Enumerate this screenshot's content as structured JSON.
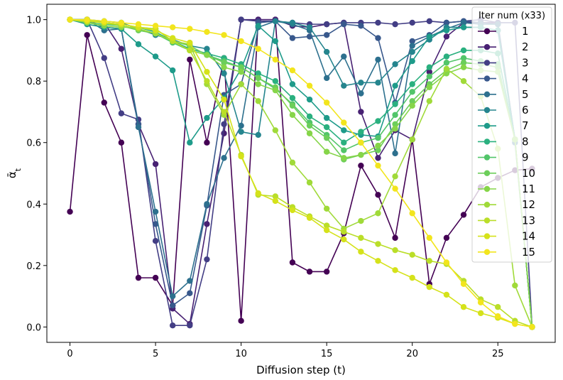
{
  "chart_data": {
    "type": "line",
    "xlabel": "Diffusion step (t)",
    "ylabel": "ᾱ",
    "ylabel_subscript": "t",
    "xlim": [
      -1.35,
      28.35
    ],
    "ylim": [
      -0.05,
      1.05
    ],
    "xticks": [
      "0",
      "5",
      "10",
      "15",
      "20",
      "25"
    ],
    "yticks": [
      "0.0",
      "0.2",
      "0.4",
      "0.6",
      "0.8",
      "1.0"
    ],
    "legend_title": "Iter num (x33)",
    "legend_position": "top-right",
    "x": [
      0,
      1,
      2,
      3,
      4,
      5,
      6,
      7,
      8,
      9,
      10,
      11,
      12,
      13,
      14,
      15,
      16,
      17,
      18,
      19,
      20,
      21,
      22,
      23,
      24,
      25,
      26,
      27
    ],
    "series": [
      {
        "name": "1",
        "color": "#440154",
        "values": [
          0.375,
          0.95,
          0.73,
          0.6,
          0.16,
          0.16,
          0.07,
          0.87,
          0.6,
          0.875,
          0.02,
          1.0,
          1.0,
          0.21,
          0.18,
          0.18,
          0.305,
          0.525,
          0.43,
          0.29,
          0.61,
          0.14,
          0.29,
          0.365,
          0.455,
          0.485,
          0.51,
          0.515
        ]
      },
      {
        "name": "2",
        "color": "#482173",
        "values": [
          1.0,
          1.0,
          0.99,
          0.905,
          0.66,
          0.53,
          0.06,
          0.01,
          0.335,
          0.63,
          1.0,
          1.0,
          1.0,
          0.98,
          0.975,
          0.985,
          0.99,
          0.7,
          0.55,
          0.64,
          0.61,
          0.83,
          0.945,
          0.99,
          0.99,
          0.99,
          0.61,
          0.0
        ]
      },
      {
        "name": "3",
        "color": "#433e85",
        "values": [
          1.0,
          1.0,
          0.875,
          0.695,
          0.675,
          0.28,
          0.005,
          0.005,
          0.22,
          0.66,
          1.0,
          0.995,
          0.995,
          0.99,
          0.985,
          0.985,
          0.99,
          0.99,
          0.99,
          0.985,
          0.99,
          0.995,
          0.99,
          0.995,
          1.0,
          0.99,
          0.99,
          0.0
        ]
      },
      {
        "name": "4",
        "color": "#38588c",
        "values": [
          1.0,
          1.0,
          0.975,
          0.97,
          0.66,
          0.335,
          0.07,
          0.11,
          0.395,
          0.755,
          0.79,
          0.99,
          0.995,
          0.94,
          0.945,
          0.95,
          0.985,
          0.98,
          0.94,
          0.73,
          0.93,
          0.95,
          0.99,
          0.995,
          0.99,
          0.985,
          0.61,
          0.0
        ]
      },
      {
        "name": "5",
        "color": "#2d708e",
        "values": [
          1.0,
          1.0,
          0.965,
          0.97,
          0.65,
          0.375,
          0.1,
          0.15,
          0.4,
          0.55,
          0.655,
          0.975,
          0.995,
          0.985,
          0.965,
          0.81,
          0.88,
          0.76,
          0.87,
          0.565,
          0.915,
          0.945,
          0.97,
          0.99,
          0.985,
          0.985,
          0.6,
          0.0
        ]
      },
      {
        "name": "6",
        "color": "#25858e",
        "values": [
          1.0,
          1.0,
          0.995,
          0.99,
          0.97,
          0.95,
          0.935,
          0.915,
          0.905,
          0.825,
          0.635,
          0.625,
          0.995,
          0.99,
          0.975,
          0.895,
          0.785,
          0.795,
          0.795,
          0.855,
          0.895,
          0.935,
          0.975,
          0.975,
          0.975,
          0.965,
          0.61,
          0.0
        ]
      },
      {
        "name": "7",
        "color": "#1e9b8a",
        "values": [
          1.0,
          0.985,
          0.975,
          0.97,
          0.92,
          0.88,
          0.835,
          0.6,
          0.68,
          0.745,
          0.84,
          0.98,
          0.93,
          0.79,
          0.74,
          0.68,
          0.64,
          0.625,
          0.62,
          0.785,
          0.865,
          0.945,
          0.965,
          0.975,
          0.975,
          0.965,
          0.61,
          0.0
        ]
      },
      {
        "name": "8",
        "color": "#2ab07f",
        "values": [
          1.0,
          0.995,
          0.99,
          0.985,
          0.975,
          0.96,
          0.93,
          0.905,
          0.89,
          0.875,
          0.855,
          0.825,
          0.8,
          0.745,
          0.685,
          0.65,
          0.6,
          0.635,
          0.67,
          0.725,
          0.79,
          0.845,
          0.88,
          0.9,
          0.9,
          0.89,
          0.61,
          0.0
        ]
      },
      {
        "name": "9",
        "color": "#52c569",
        "values": [
          1.0,
          0.99,
          0.985,
          0.98,
          0.97,
          0.955,
          0.925,
          0.9,
          0.885,
          0.865,
          0.845,
          0.81,
          0.775,
          0.725,
          0.665,
          0.625,
          0.575,
          0.6,
          0.615,
          0.69,
          0.765,
          0.815,
          0.86,
          0.875,
          0.865,
          0.855,
          0.61,
          0.0
        ]
      },
      {
        "name": "10",
        "color": "#6cce5a",
        "values": [
          1.0,
          1.0,
          0.99,
          0.98,
          0.965,
          0.955,
          0.93,
          0.915,
          0.885,
          0.86,
          0.845,
          0.81,
          0.78,
          0.72,
          0.655,
          0.615,
          0.545,
          0.56,
          0.575,
          0.66,
          0.735,
          0.79,
          0.835,
          0.86,
          0.855,
          0.845,
          0.61,
          0.0
        ]
      },
      {
        "name": "11",
        "color": "#86d549",
        "values": [
          1.0,
          0.99,
          0.98,
          0.975,
          0.975,
          0.97,
          0.93,
          0.9,
          0.885,
          0.845,
          0.83,
          0.79,
          0.77,
          0.69,
          0.63,
          0.57,
          0.55,
          0.56,
          0.59,
          0.645,
          0.72,
          0.78,
          0.825,
          0.845,
          0.835,
          0.83,
          0.61,
          0.0
        ]
      },
      {
        "name": "12",
        "color": "#a0da39",
        "values": [
          1.0,
          0.995,
          0.99,
          0.98,
          0.97,
          0.955,
          0.93,
          0.92,
          0.79,
          0.69,
          0.79,
          0.735,
          0.64,
          0.535,
          0.47,
          0.385,
          0.32,
          0.345,
          0.37,
          0.49,
          0.61,
          0.735,
          0.84,
          0.8,
          0.75,
          0.58,
          0.135,
          0.0
        ]
      },
      {
        "name": "13",
        "color": "#bade28",
        "values": [
          1.0,
          0.995,
          0.99,
          0.985,
          0.975,
          0.97,
          0.93,
          0.9,
          0.8,
          0.7,
          0.56,
          0.43,
          0.425,
          0.39,
          0.36,
          0.33,
          0.31,
          0.29,
          0.27,
          0.25,
          0.235,
          0.215,
          0.205,
          0.15,
          0.09,
          0.065,
          0.02,
          0.0
        ]
      },
      {
        "name": "14",
        "color": "#d5e21a",
        "values": [
          1.0,
          0.995,
          0.99,
          0.985,
          0.975,
          0.965,
          0.94,
          0.925,
          0.83,
          0.74,
          0.555,
          0.435,
          0.41,
          0.38,
          0.355,
          0.315,
          0.285,
          0.245,
          0.215,
          0.185,
          0.16,
          0.13,
          0.105,
          0.065,
          0.045,
          0.03,
          0.01,
          0.0
        ]
      },
      {
        "name": "15",
        "color": "#f2e51d",
        "values": [
          1.0,
          1.0,
          0.995,
          0.99,
          0.985,
          0.98,
          0.975,
          0.97,
          0.96,
          0.95,
          0.93,
          0.905,
          0.87,
          0.835,
          0.785,
          0.73,
          0.665,
          0.6,
          0.525,
          0.45,
          0.37,
          0.29,
          0.21,
          0.14,
          0.08,
          0.035,
          0.01,
          0.0
        ]
      }
    ]
  }
}
